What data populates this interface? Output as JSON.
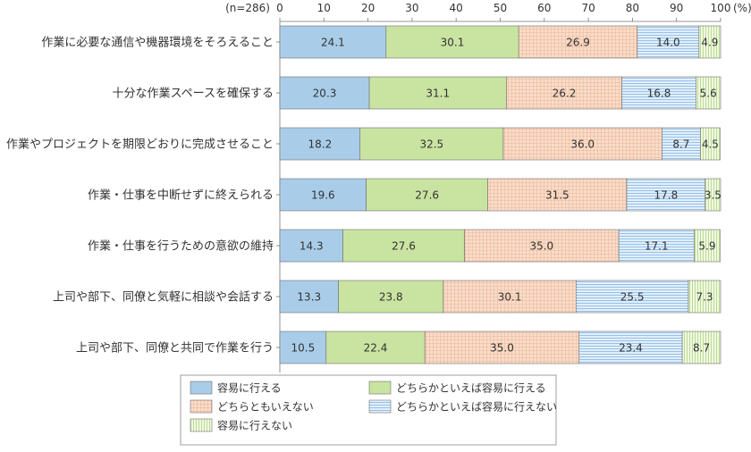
{
  "chart_data": {
    "type": "bar",
    "orientation": "horizontal",
    "stacked": true,
    "n_label": "(n=286)",
    "unit_label": "(%)",
    "xlim": [
      0,
      100
    ],
    "x_ticks": [
      "0",
      "10",
      "20",
      "30",
      "40",
      "50",
      "60",
      "70",
      "80",
      "90",
      "100"
    ],
    "categories": [
      "作業に必要な通信や機器環境をそろえること",
      "十分な作業スペースを確保する",
      "作業やプロジェクトを期限どおりに完成させること",
      "作業・仕事を中断せずに終えられる",
      "作業・仕事を行うための意欲の維持",
      "上司や部下、同僚と気軽に相談や会話する",
      "上司や部下、同僚と共同で作業を行う"
    ],
    "series": [
      {
        "name": "容易に行える",
        "values": [
          24.1,
          20.3,
          18.2,
          19.6,
          14.3,
          13.3,
          10.5
        ],
        "labels": [
          "24.1",
          "20.3",
          "18.2",
          "19.6",
          "14.3",
          "13.3",
          "10.5"
        ],
        "color": "#a9cde9",
        "pattern": "solid"
      },
      {
        "name": "どちらかといえば容易に行える",
        "values": [
          30.1,
          31.1,
          32.5,
          27.6,
          27.6,
          23.8,
          22.4
        ],
        "labels": [
          "30.1",
          "31.1",
          "32.5",
          "27.6",
          "27.6",
          "23.8",
          "22.4"
        ],
        "color": "#c9e3a1",
        "pattern": "solid"
      },
      {
        "name": "どちらともいえない",
        "values": [
          26.9,
          26.2,
          36.0,
          31.5,
          35.0,
          30.1,
          35.0
        ],
        "labels": [
          "26.9",
          "26.2",
          "36.0",
          "31.5",
          "35.0",
          "30.1",
          "35.0"
        ],
        "color": "#f7d3bd",
        "pattern": "grid"
      },
      {
        "name": "どちらかといえば容易に行えない",
        "values": [
          14.0,
          16.8,
          8.7,
          17.8,
          17.1,
          25.5,
          23.4
        ],
        "labels": [
          "14.0",
          "16.8",
          "8.7",
          "17.8",
          "17.1",
          "25.5",
          "23.4"
        ],
        "color": "#d4e6f5",
        "pattern": "hlines"
      },
      {
        "name": "容易に行えない",
        "values": [
          4.9,
          5.6,
          4.5,
          3.5,
          5.9,
          7.3,
          8.7
        ],
        "labels": [
          "4.9",
          "5.6",
          "4.5",
          "3.5",
          "5.9",
          "7.3",
          "8.7"
        ],
        "color": "#e6f2cf",
        "pattern": "vlines"
      }
    ],
    "legend_position": "bottom-center",
    "grid": false
  }
}
